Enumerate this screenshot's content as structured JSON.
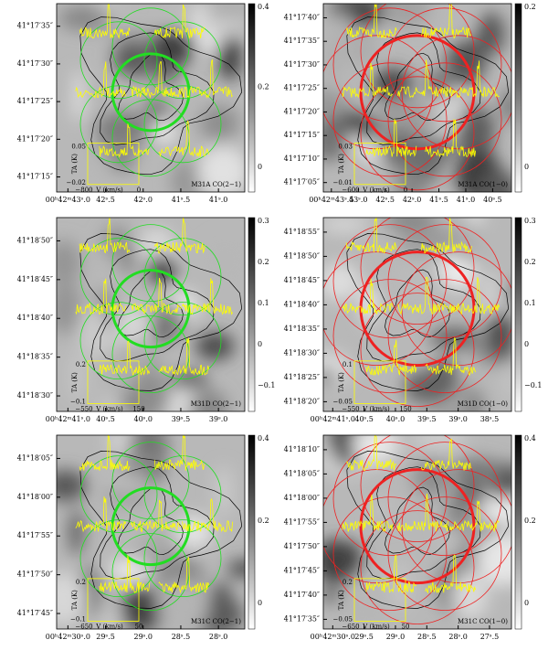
{
  "panels": [
    {
      "dec": [
        "41°17′35″",
        "41°17′30″",
        "41°17′25″",
        "41°17′20″",
        "41°17′15″"
      ],
      "ra": [
        "00ʰ42ᵐ43ˢ.0",
        "42ˢ.5",
        "42ˢ.0",
        "41ˢ.5",
        "41ˢ.0"
      ],
      "cbar": [
        "0.4",
        "0.2",
        "0"
      ],
      "label": "M31A   CO(2−1)",
      "circle_color": "#22dd22",
      "inset": {
        "ymax": "0.05",
        "ymin": "−0.02",
        "xmin": "−800",
        "xmax": "0",
        "ylabel": "TA (K)",
        "xlabel": "V (km/s)"
      }
    },
    {
      "dec": [
        "41°17′40″",
        "41°17′35″",
        "41°17′30″",
        "41°17′25″",
        "41°17′20″",
        "41°17′15″",
        "41°17′10″",
        "41°17′05″"
      ],
      "ra": [
        "00ʰ42ᵐ43ˢ.5",
        "43ˢ.0",
        "42ˢ.5",
        "42ˢ.0",
        "41ˢ.5",
        "41ˢ.0",
        "40ˢ.5"
      ],
      "cbar": [
        "0.2",
        "0"
      ],
      "label": "M31A   CO(1−0)",
      "circle_color": "#ee2222",
      "inset": {
        "ymax": "0.03",
        "ymin": "−0.01",
        "xmin": "−600",
        "xmax": "0",
        "ylabel": "TA (K)",
        "xlabel": "V (km/s)"
      }
    },
    {
      "dec": [
        "41°18′50″",
        "41°18′45″",
        "41°18′40″",
        "41°18′35″",
        "41°18′30″"
      ],
      "ra": [
        "00ʰ42ᵐ41ˢ.0",
        "40ˢ.5",
        "40ˢ.0",
        "39ˢ.5",
        "39ˢ.0"
      ],
      "cbar": [
        "0.3",
        "0.2",
        "0.1",
        "0",
        "−0.1"
      ],
      "label": "M31D   CO(2−1)",
      "circle_color": "#22dd22",
      "inset": {
        "ymax": "0.2",
        "ymin": "−0.1",
        "xmin": "−550",
        "xmax": "150",
        "ylabel": "TA (K)",
        "xlabel": "V (km/s)"
      }
    },
    {
      "dec": [
        "41°18′55″",
        "41°18′50″",
        "41°18′45″",
        "41°18′40″",
        "41°18′35″",
        "41°18′30″",
        "41°18′25″",
        "41°18′20″"
      ],
      "ra": [
        "00ʰ42ᵐ41ˢ.0",
        "40ˢ.5",
        "40ˢ.0",
        "39ˢ.5",
        "39ˢ.0",
        "38ˢ.5"
      ],
      "cbar": [
        "0.3",
        "0.2",
        "0.1",
        "0",
        "−0.1"
      ],
      "label": "M31D   CO(1−0)",
      "circle_color": "#ee2222",
      "inset": {
        "ymax": "0.1",
        "ymin": "−0.05",
        "xmin": "−550",
        "xmax": "150",
        "ylabel": "TA (K)",
        "xlabel": "V (km/s)"
      }
    },
    {
      "dec": [
        "41°18′05″",
        "41°18′00″",
        "41°17′55″",
        "41°17′50″",
        "41°17′45″"
      ],
      "ra": [
        "00ʰ42ᵐ30ˢ.0",
        "29ˢ.5",
        "29ˢ.0",
        "28ˢ.5",
        "28ˢ.0"
      ],
      "cbar": [
        "0.4",
        "0.2",
        "0"
      ],
      "label": "M31C   CO(2−1)",
      "circle_color": "#22dd22",
      "inset": {
        "ymax": "0.2",
        "ymin": "−0.1",
        "xmin": "−650",
        "xmax": "50",
        "ylabel": "TA (K)",
        "xlabel": "V (km/s)"
      }
    },
    {
      "dec": [
        "41°18′10″",
        "41°18′05″",
        "41°18′00″",
        "41°17′55″",
        "41°17′50″",
        "41°17′45″",
        "41°17′40″",
        "41°17′35″"
      ],
      "ra": [
        "00ʰ42ᵐ30ˢ.0",
        "29ˢ.5",
        "29ˢ.0",
        "28ˢ.5",
        "28ˢ.0",
        "27ˢ.5"
      ],
      "cbar": [
        "0.4",
        "0.2",
        "0"
      ],
      "label": "M31C   CO(1−0)",
      "circle_color": "#ee2222",
      "inset": {
        "ymax": "0.2",
        "ymin": "−0.05",
        "xmin": "−650",
        "xmax": "50",
        "ylabel": "TA (K)",
        "xlabel": "V (km/s)"
      }
    }
  ]
}
